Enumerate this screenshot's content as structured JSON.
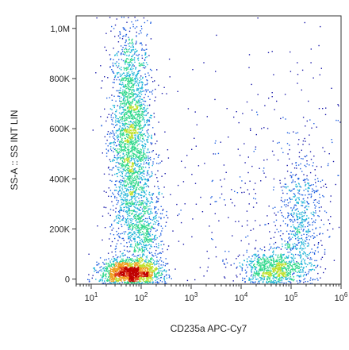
{
  "chart_data": {
    "type": "scatter",
    "style": "flow cytometry density dot plot (blue to red density colormap)",
    "xlabel": "CD235a APC-Cy7",
    "ylabel": "SS-A :: SS INT LIN",
    "x_scale": "log",
    "y_scale": "linear",
    "xlim": [
      5,
      1000000
    ],
    "ylim": [
      -20000,
      1050000
    ],
    "x_ticks": [
      {
        "value": 10,
        "base": "10",
        "exp": "1"
      },
      {
        "value": 100,
        "base": "10",
        "exp": "2"
      },
      {
        "value": 1000,
        "base": "10",
        "exp": "3"
      },
      {
        "value": 10000,
        "base": "10",
        "exp": "4"
      },
      {
        "value": 100000,
        "base": "10",
        "exp": "5"
      },
      {
        "value": 1000000,
        "base": "10",
        "exp": "6"
      }
    ],
    "y_ticks": [
      {
        "value": 0,
        "label": "0"
      },
      {
        "value": 200000,
        "label": "200K"
      },
      {
        "value": 400000,
        "label": "400K"
      },
      {
        "value": 600000,
        "label": "600K"
      },
      {
        "value": 800000,
        "label": "800K"
      },
      {
        "value": 1000000,
        "label": "1,0M"
      }
    ],
    "populations": [
      {
        "center_x": 60,
        "center_y": 560000,
        "log_spread_x": 0.2,
        "spread_y": 230000,
        "events": 2600
      },
      {
        "center_x": 60,
        "center_y": 25000,
        "log_spread_x": 0.3,
        "spread_y": 28000,
        "events": 1700
      },
      {
        "center_x": 120,
        "center_y": 200000,
        "log_spread_x": 0.2,
        "spread_y": 80000,
        "events": 500
      },
      {
        "center_x": 40000,
        "center_y": 40000,
        "log_spread_x": 0.3,
        "spread_y": 35000,
        "events": 800
      },
      {
        "center_x": 150000,
        "center_y": 200000,
        "log_spread_x": 0.22,
        "spread_y": 150000,
        "events": 700
      },
      {
        "center_x": 30000,
        "center_y": 300000,
        "log_spread_x": 1.3,
        "spread_y": 300000,
        "events": 500
      }
    ],
    "density_colors": [
      "#1a1aaa",
      "#1f5fe0",
      "#1fb4d8",
      "#2fd88a",
      "#bfe02a",
      "#f0a020",
      "#e0401a",
      "#c00000"
    ],
    "grid": false,
    "legend": "none"
  }
}
